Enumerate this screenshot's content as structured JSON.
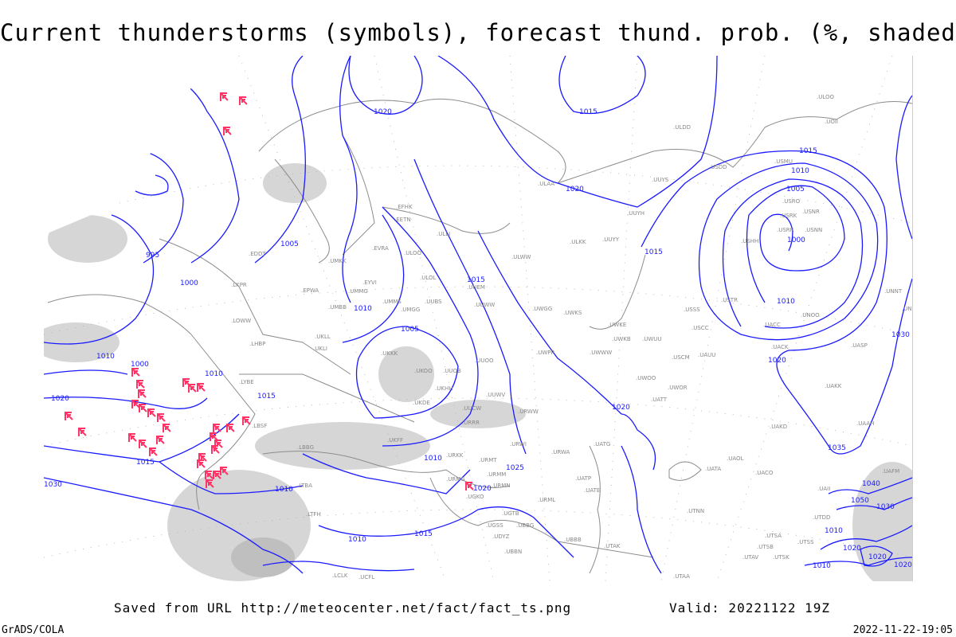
{
  "title": "Current thunderstorms (symbols), forecast thund. prob. (%, shaded)",
  "footer": {
    "saved_from": "Saved from URL http://meteocenter.net/fact/fact_ts.png",
    "valid": "Valid: 20221122 19Z",
    "software": "GrADS/COLA",
    "timestamp": "2022-11-22-19:05"
  },
  "colors": {
    "isobars": "#1a1aff",
    "coastlines": "#8c8c8c",
    "thunderstorm_symbols": "#ff3366",
    "probability_shading": "#c8c8c8"
  },
  "isobar_labels": [
    "1020",
    "1015",
    "1020",
    "1015",
    "1010",
    "1005",
    "1000",
    "1010",
    "1020",
    "995",
    "1005",
    "1000",
    "1010",
    "1005",
    "1010",
    "1000",
    "1010",
    "1015",
    "1020",
    "1010",
    "1015",
    "1010",
    "1020",
    "1015",
    "1015",
    "1020",
    "1025",
    "1030",
    "1035",
    "1030",
    "1040",
    "1050",
    "1030",
    "1010",
    "1020",
    "1020",
    "1020",
    "1010",
    "1015",
    "1010"
  ],
  "station_labels": [
    "ULOO",
    "UOII",
    "ULDD",
    "USMU",
    "USDD",
    "UUYS",
    "ULAA",
    "UUYH",
    "USRO",
    "USRK",
    "USNR",
    "USRR",
    "USNN",
    "ULKK",
    "UUYY",
    "USHH",
    "EFHK",
    "EETN",
    "ULLI",
    "EVRA",
    "ULOO",
    "ULOL",
    "ULWW",
    "EDDT",
    "UMKK",
    "EYVI",
    "UMMG",
    "UMBB",
    "UMMS",
    "UMGG",
    "UUBS",
    "UUEM",
    "UUWW",
    "UWGG",
    "UWKS",
    "UKLL",
    "UKLI",
    "UKKK",
    "UUOO",
    "UUOB",
    "UKHH",
    "UKDE",
    "UKOO",
    "UUWV",
    "UWPP",
    "UWKE",
    "UWKB",
    "UWUU",
    "UWWW",
    "UUCW",
    "URRR",
    "URWW",
    "UKFF",
    "URKK",
    "URMT",
    "URMM",
    "URMN",
    "URWI",
    "URWA",
    "UATG",
    "UATT",
    "UWOO",
    "UWOR",
    "USCM",
    "UAUU",
    "USCC",
    "USSS",
    "USTR",
    "UACC",
    "UNOO",
    "UACK",
    "UASP",
    "UAKK",
    "UAKD",
    "UATA",
    "UAOL",
    "UACO",
    "UAII",
    "UAAH",
    "UTNN",
    "UAFM",
    "UTAK",
    "UTDD",
    "UTSK",
    "UTSA",
    "UTSS",
    "UTAV",
    "UGSS",
    "UGTB",
    "UBBB",
    "UBBG",
    "UDYZ",
    "UBBN",
    "UTSB",
    "UTAA",
    "UCFL",
    "LHBP",
    "LBSF",
    "LBBG",
    "LYBE",
    "LKPR",
    "EPWA",
    "LOWW",
    "LTBA",
    "LTFH",
    "LCLK",
    "URMG",
    "UGKO",
    "URML",
    "UATE",
    "UATP",
    "UNNT",
    "UNBB"
  ]
}
